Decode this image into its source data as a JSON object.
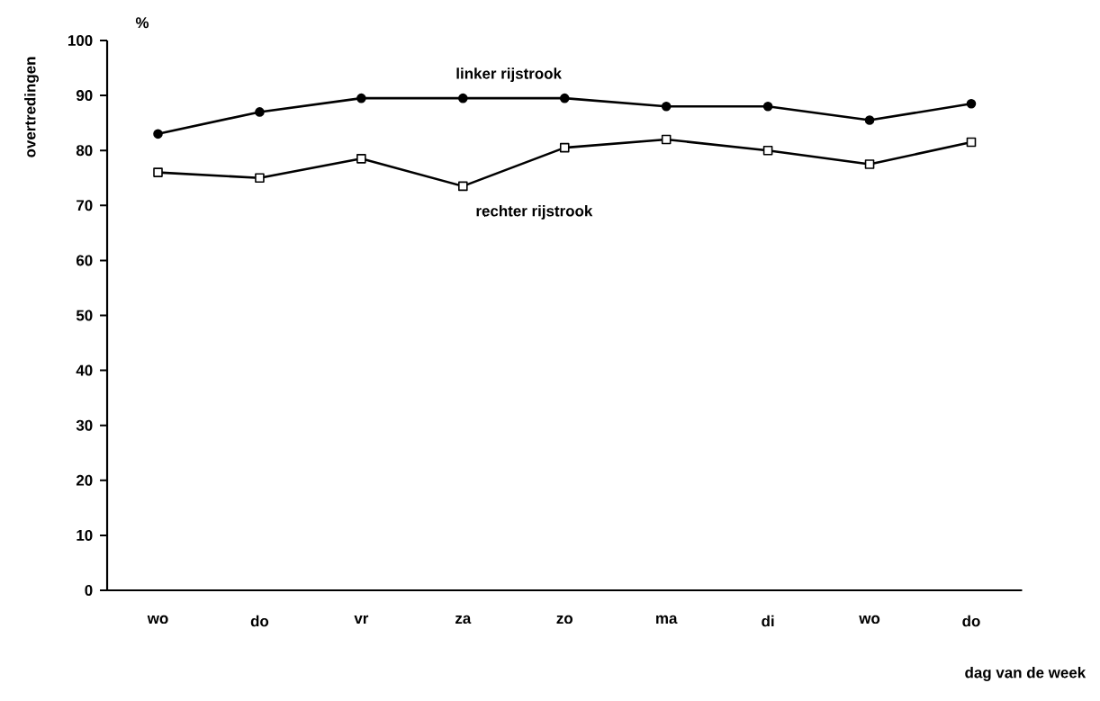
{
  "chart_data": {
    "type": "line",
    "ylabel": "overtredingen",
    "xlabel": "dag van de week",
    "annotations": [
      "%"
    ],
    "categories": [
      "wo",
      "do",
      "vr",
      "za",
      "zo",
      "ma",
      "di",
      "wo",
      "do"
    ],
    "series": [
      {
        "name": "linker rijstrook",
        "color": "#000000",
        "marker": "circle",
        "values": [
          83,
          87,
          89.5,
          89.5,
          89.5,
          88,
          88,
          85.5,
          88.5
        ]
      },
      {
        "name": "rechter rijstrook",
        "color": "#000000",
        "marker": "square",
        "values": [
          76,
          75,
          78.5,
          73.5,
          80.5,
          82,
          80,
          77.5,
          81.5
        ]
      }
    ],
    "ylim": [
      0,
      100
    ],
    "yticks": [
      0,
      10,
      20,
      30,
      40,
      50,
      60,
      70,
      80,
      90,
      100
    ],
    "grid": false,
    "legend": false,
    "line_style": "solid"
  }
}
